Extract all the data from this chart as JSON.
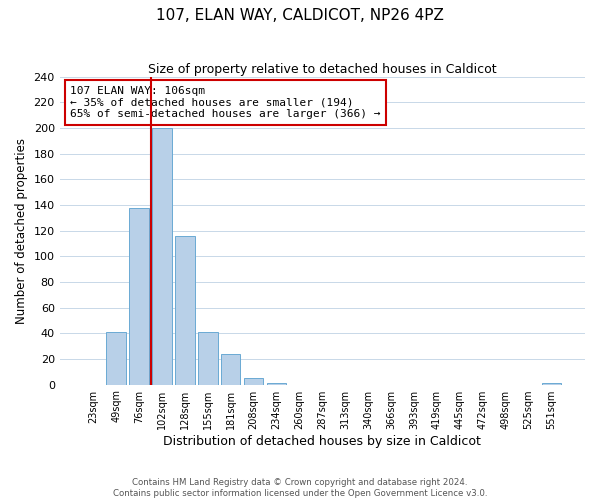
{
  "title": "107, ELAN WAY, CALDICOT, NP26 4PZ",
  "subtitle": "Size of property relative to detached houses in Caldicot",
  "xlabel": "Distribution of detached houses by size in Caldicot",
  "ylabel": "Number of detached properties",
  "categories": [
    "23sqm",
    "49sqm",
    "76sqm",
    "102sqm",
    "128sqm",
    "155sqm",
    "181sqm",
    "208sqm",
    "234sqm",
    "260sqm",
    "287sqm",
    "313sqm",
    "340sqm",
    "366sqm",
    "393sqm",
    "419sqm",
    "445sqm",
    "472sqm",
    "498sqm",
    "525sqm",
    "551sqm"
  ],
  "values": [
    0,
    41,
    138,
    200,
    116,
    41,
    24,
    5,
    1,
    0,
    0,
    0,
    0,
    0,
    0,
    0,
    0,
    0,
    0,
    0,
    1
  ],
  "bar_color": "#b8d0e8",
  "bar_edgecolor": "#6aaad4",
  "vline_x_index": 2.5,
  "vline_color": "#cc0000",
  "annotation_text": "107 ELAN WAY: 106sqm\n← 35% of detached houses are smaller (194)\n65% of semi-detached houses are larger (366) →",
  "annotation_box_edgecolor": "#cc0000",
  "ylim": [
    0,
    240
  ],
  "yticks": [
    0,
    20,
    40,
    60,
    80,
    100,
    120,
    140,
    160,
    180,
    200,
    220,
    240
  ],
  "footer_line1": "Contains HM Land Registry data © Crown copyright and database right 2024.",
  "footer_line2": "Contains public sector information licensed under the Open Government Licence v3.0.",
  "background_color": "#ffffff",
  "grid_color": "#c8d8e8"
}
